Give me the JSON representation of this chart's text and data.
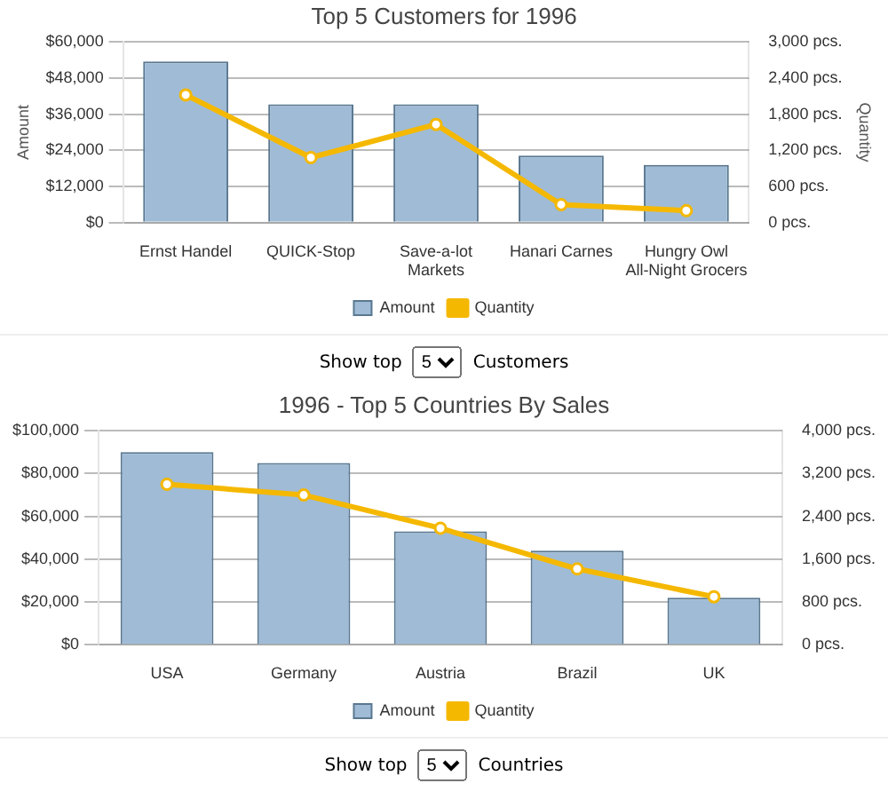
{
  "chart_data": [
    {
      "type": "bar",
      "title": "Top 5 Customers for 1996",
      "ylabel": "Amount",
      "y2label": "Quantity",
      "categories": [
        "Ernst Handel",
        "QUICK-Stop",
        "Save-a-lot Markets",
        "Hanari Carnes",
        "Hungry Owl All-Night Grocers"
      ],
      "series": [
        {
          "name": "Amount",
          "color": "#9fbbd6",
          "values": [
            53500,
            39300,
            39300,
            22300,
            19200
          ]
        },
        {
          "name": "Quantity",
          "type": "line",
          "axis": "y2",
          "color": "#f5b800",
          "values": [
            2120,
            1080,
            1630,
            300,
            200
          ]
        }
      ],
      "ylim": [
        0,
        60000
      ],
      "yticks": [
        {
          "value": 0,
          "label": "$0"
        },
        {
          "value": 12000,
          "label": "$12,000"
        },
        {
          "value": 24000,
          "label": "$24,000"
        },
        {
          "value": 36000,
          "label": "$36,000"
        },
        {
          "value": 48000,
          "label": "$48,000"
        },
        {
          "value": 60000,
          "label": "$60,000"
        }
      ],
      "y2lim": [
        0,
        3000
      ],
      "y2ticks": [
        {
          "value": 0,
          "label": "0 pcs."
        },
        {
          "value": 600,
          "label": "600 pcs."
        },
        {
          "value": 1200,
          "label": "1,200 pcs."
        },
        {
          "value": 1800,
          "label": "1,800 pcs."
        },
        {
          "value": 2400,
          "label": "2,400 pcs."
        },
        {
          "value": 3000,
          "label": "3,000 pcs."
        }
      ],
      "grid": "y",
      "legend": "bottom",
      "marker": "circle",
      "annotations": [
        "Show top",
        "5",
        "Customers"
      ]
    },
    {
      "type": "bar",
      "title": "1996 - Top 5 Countries By Sales",
      "categories": [
        "USA",
        "Germany",
        "Austria",
        "Brazil",
        "UK"
      ],
      "series": [
        {
          "name": "Amount",
          "color": "#9fbbd6",
          "values": [
            90000,
            85000,
            53000,
            44000,
            22000
          ]
        },
        {
          "name": "Quantity",
          "type": "line",
          "axis": "y2",
          "color": "#f5b800",
          "values": [
            3000,
            2800,
            2180,
            1420,
            900
          ]
        }
      ],
      "ylim": [
        0,
        100000
      ],
      "yticks": [
        {
          "value": 0,
          "label": "$0"
        },
        {
          "value": 20000,
          "label": "$20,000"
        },
        {
          "value": 40000,
          "label": "$40,000"
        },
        {
          "value": 60000,
          "label": "$60,000"
        },
        {
          "value": 80000,
          "label": "$80,000"
        },
        {
          "value": 100000,
          "label": "$100,000"
        }
      ],
      "y2lim": [
        0,
        4000
      ],
      "y2ticks": [
        {
          "value": 0,
          "label": "0 pcs."
        },
        {
          "value": 800,
          "label": "800 pcs."
        },
        {
          "value": 1600,
          "label": "1,600 pcs."
        },
        {
          "value": 2400,
          "label": "2,400 pcs."
        },
        {
          "value": 3200,
          "label": "3,200 pcs."
        },
        {
          "value": 4000,
          "label": "4,000 pcs."
        }
      ],
      "grid": "y",
      "legend": "bottom",
      "marker": "circle",
      "annotations": [
        "Show top",
        "5",
        "Countries"
      ]
    }
  ]
}
